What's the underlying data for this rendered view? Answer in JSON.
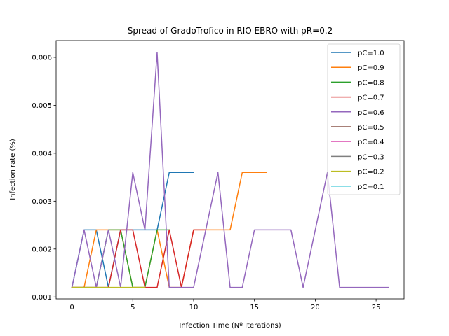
{
  "chart_data": {
    "type": "line",
    "title": "Spread of GradoTrofico in RIO EBRO with pR=0.2",
    "xlabel": "Infection Time (Nº Iterations)",
    "ylabel": "Infection rate (%)",
    "xlim": [
      -1.3,
      27.3
    ],
    "ylim": [
      0.00096,
      0.00635
    ],
    "xticks": [
      0,
      5,
      10,
      15,
      20,
      25
    ],
    "yticks": [
      0.001,
      0.002,
      0.003,
      0.004,
      0.005,
      0.006
    ],
    "ytick_labels": [
      "0.001",
      "0.002",
      "0.003",
      "0.004",
      "0.005",
      "0.006"
    ],
    "grid": false,
    "legend_position": "top-right",
    "series": [
      {
        "name": "pC=1.0",
        "color": "#1f77b4",
        "x": [
          0,
          1,
          2,
          3,
          4,
          5,
          6,
          7,
          8,
          9,
          10
        ],
        "y": [
          0.0012,
          0.0024,
          0.0024,
          0.0012,
          0.0024,
          0.0024,
          0.0024,
          0.0024,
          0.0036,
          0.0036,
          0.0036
        ]
      },
      {
        "name": "pC=0.9",
        "color": "#ff7f0e",
        "x": [
          0,
          1,
          2,
          3,
          4,
          5,
          6,
          7,
          8,
          9,
          10,
          11,
          12,
          13,
          14,
          15,
          16
        ],
        "y": [
          0.0012,
          0.0012,
          0.0024,
          0.0024,
          0.0024,
          0.0012,
          0.0012,
          0.0024,
          0.0012,
          0.0012,
          0.0024,
          0.0024,
          0.0024,
          0.0024,
          0.0036,
          0.0036,
          0.0036
        ]
      },
      {
        "name": "pC=0.8",
        "color": "#2ca02c",
        "x": [
          0,
          1,
          2,
          3,
          4,
          5,
          6,
          7,
          8
        ],
        "y": [
          0.0012,
          0.0012,
          0.0012,
          0.0024,
          0.0024,
          0.0012,
          0.0012,
          0.0024,
          0.0024
        ]
      },
      {
        "name": "pC=0.7",
        "color": "#d62728",
        "x": [
          0,
          1,
          2,
          3,
          4,
          5,
          6,
          7,
          8,
          9,
          10,
          11
        ],
        "y": [
          0.0012,
          0.0012,
          0.0012,
          0.0012,
          0.0024,
          0.0024,
          0.0012,
          0.0012,
          0.0024,
          0.0012,
          0.0024,
          0.0024
        ]
      },
      {
        "name": "pC=0.6",
        "color": "#9467bd",
        "x": [
          0,
          1,
          2,
          3,
          4,
          5,
          6,
          7,
          8,
          9,
          10,
          11,
          12,
          13,
          14,
          15,
          16,
          17,
          18,
          19,
          20,
          21,
          22,
          23,
          24,
          25,
          26
        ],
        "y": [
          0.0012,
          0.0024,
          0.0012,
          0.0024,
          0.0012,
          0.0036,
          0.0024,
          0.0061,
          0.0012,
          0.0012,
          0.0012,
          0.0024,
          0.0036,
          0.0012,
          0.0012,
          0.0024,
          0.0024,
          0.0024,
          0.0024,
          0.0012,
          0.0024,
          0.0036,
          0.0012,
          0.0012,
          0.0012,
          0.0012,
          0.0012
        ]
      },
      {
        "name": "pC=0.5",
        "color": "#8c564b",
        "x": [],
        "y": []
      },
      {
        "name": "pC=0.4",
        "color": "#e377c2",
        "x": [],
        "y": []
      },
      {
        "name": "pC=0.3",
        "color": "#7f7f7f",
        "x": [],
        "y": []
      },
      {
        "name": "pC=0.2",
        "color": "#bcbd22",
        "x": [
          0,
          1,
          2,
          3,
          4,
          5,
          6
        ],
        "y": [
          0.0012,
          0.0012,
          0.0012,
          0.0012,
          0.0012,
          0.0012,
          0.0012
        ]
      },
      {
        "name": "pC=0.1",
        "color": "#17becf",
        "x": [],
        "y": []
      }
    ]
  }
}
